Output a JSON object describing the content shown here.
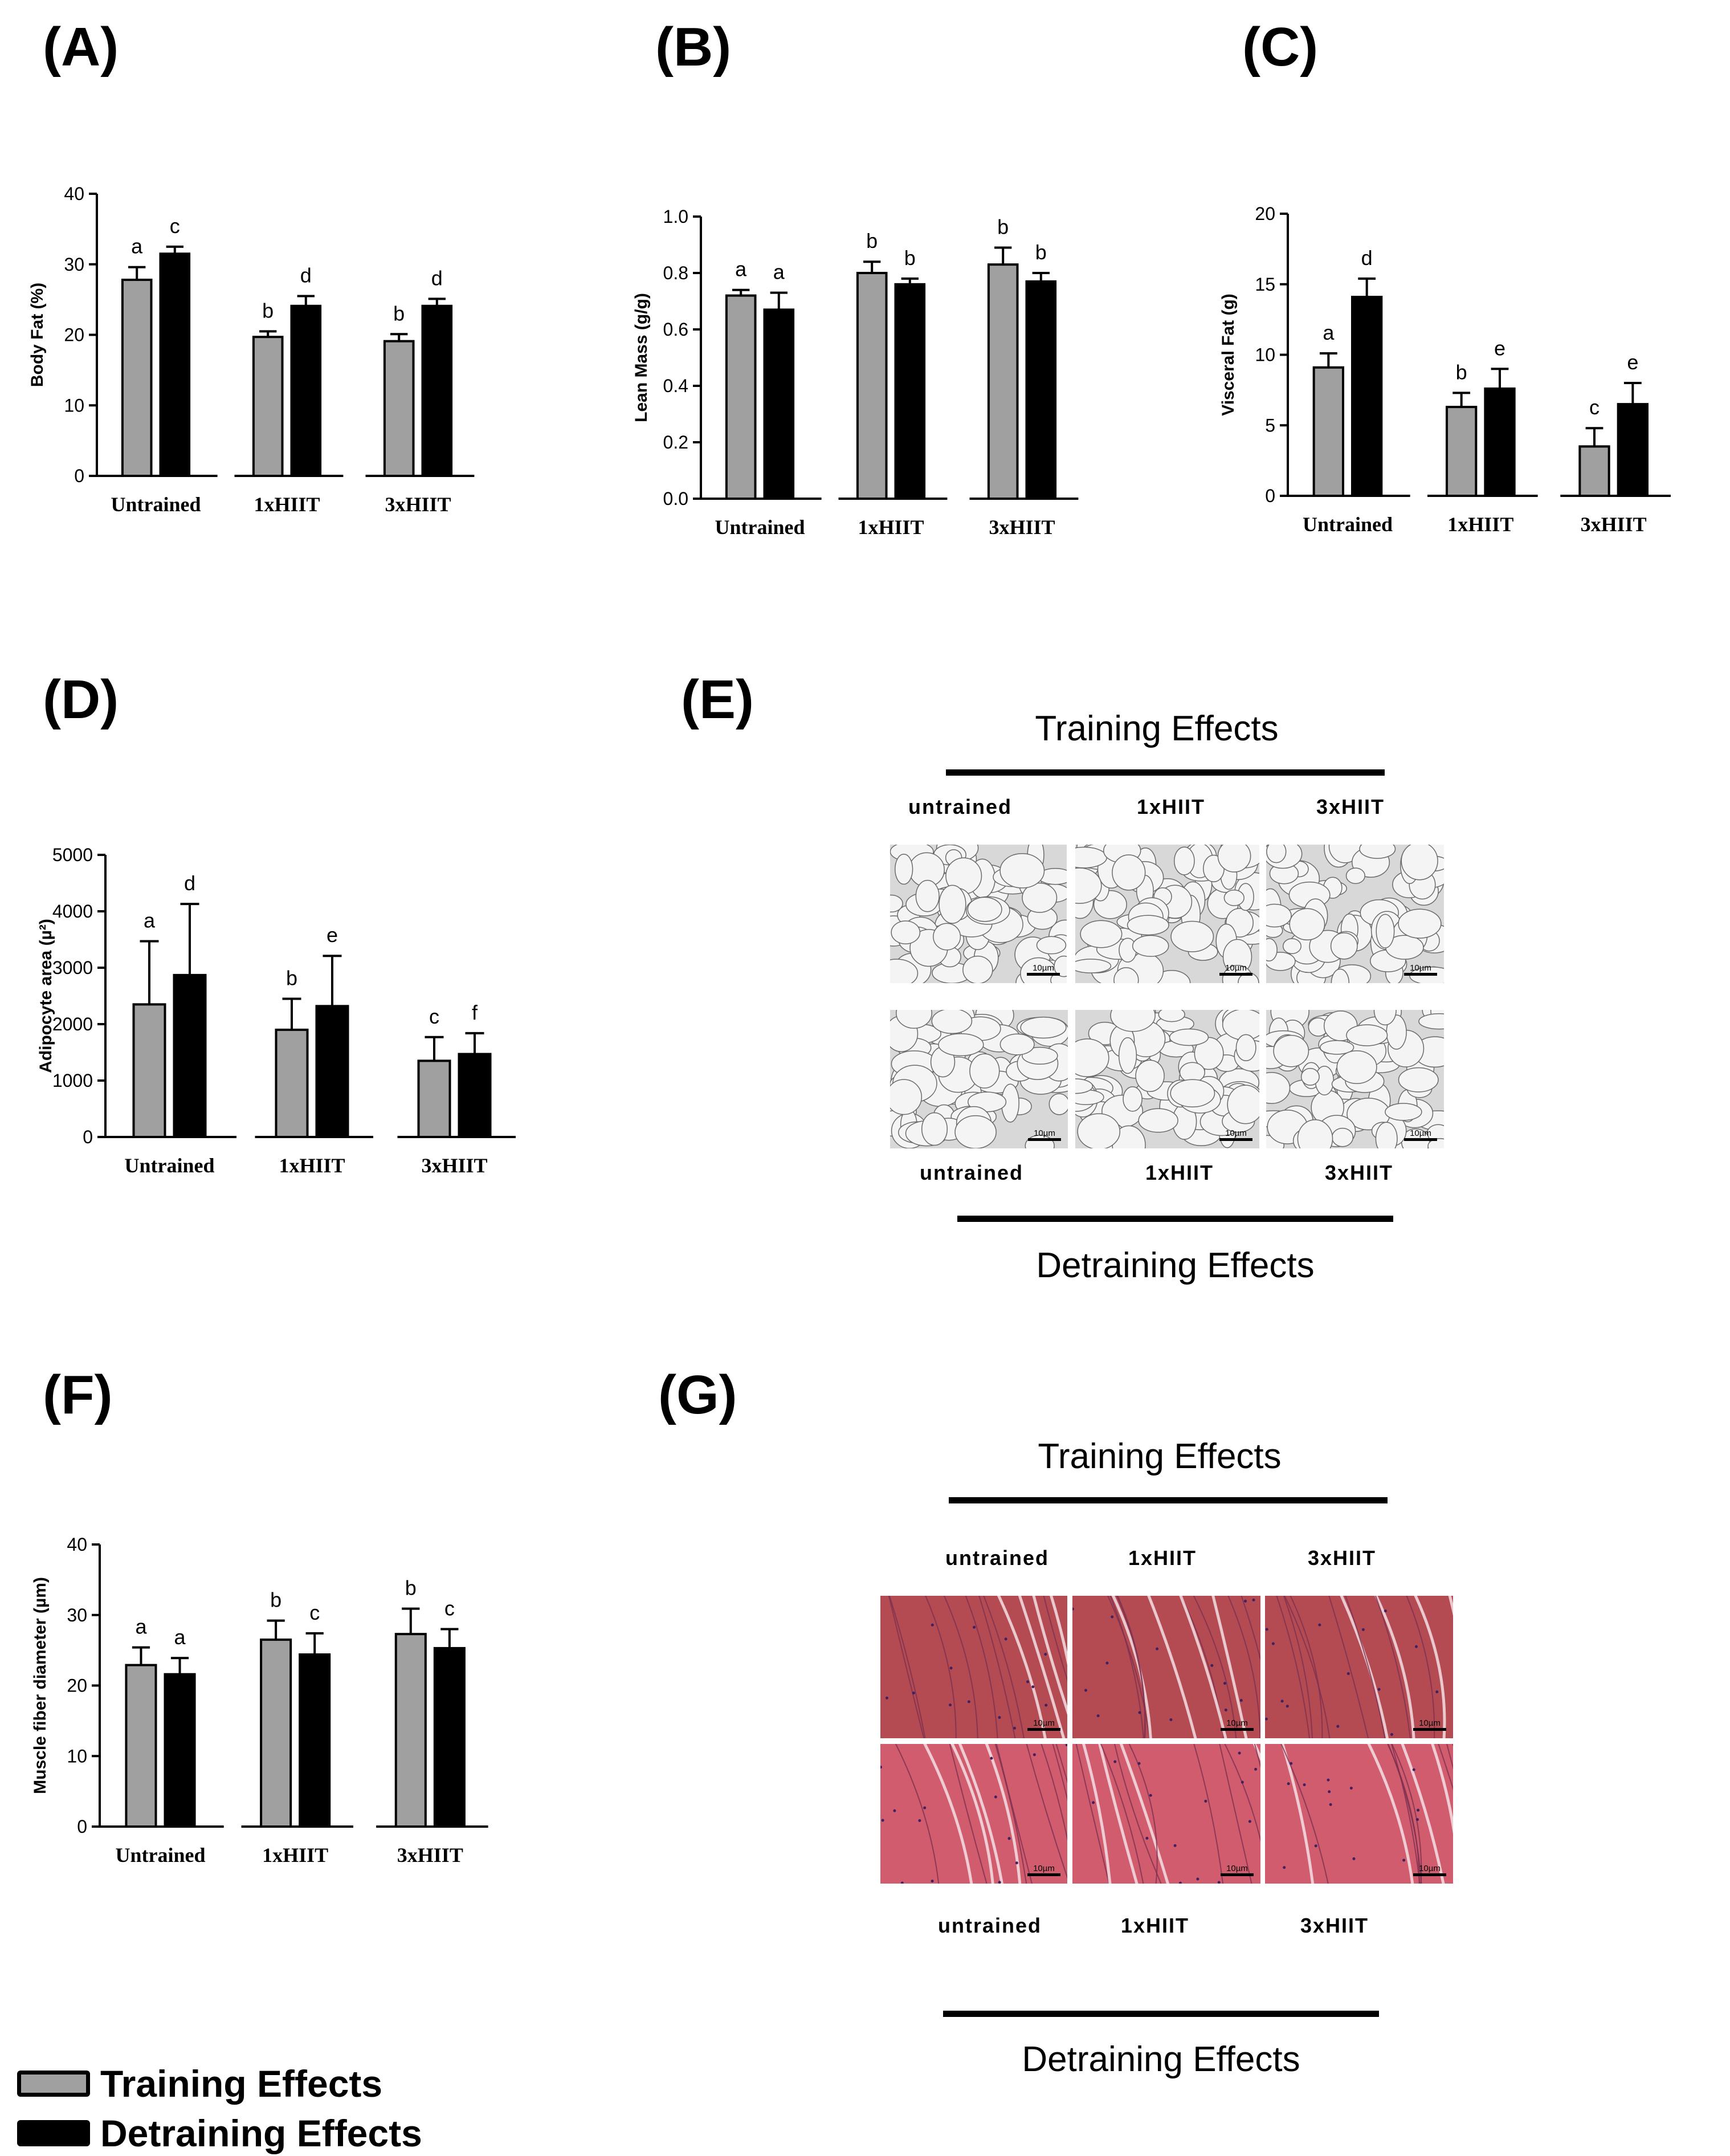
{
  "panel_labels": {
    "A": "(A)",
    "B": "(B)",
    "C": "(C)",
    "D": "(D)",
    "E": "(E)",
    "F": "(F)",
    "G": "(G)"
  },
  "colors": {
    "training": "#a0a0a0",
    "detraining": "#000000",
    "muscle_dark": "#b44a52",
    "muscle_light": "#d05c6e",
    "fat_bg": "#eeeeee"
  },
  "chart_data": [
    {
      "id": "A",
      "type": "bar",
      "ylabel": "Body Fat (%)",
      "ylim": [
        0,
        40
      ],
      "yticks": [
        0,
        10,
        20,
        30,
        40
      ],
      "categories": [
        "Untrained",
        "1xHIIT",
        "3xHIIT"
      ],
      "series": [
        {
          "name": "Training Effects",
          "values": [
            27.8,
            19.7,
            19.1
          ],
          "errors": [
            1.8,
            0.8,
            1.0
          ],
          "letters": [
            "a",
            "b",
            "b"
          ]
        },
        {
          "name": "Detraining Effects",
          "values": [
            31.5,
            24.1,
            24.1
          ],
          "errors": [
            1.0,
            1.4,
            1.0
          ],
          "letters": [
            "c",
            "d",
            "d"
          ]
        }
      ]
    },
    {
      "id": "B",
      "type": "bar",
      "ylabel": "Lean Mass (g/g)",
      "ylim": [
        0,
        1.0
      ],
      "yticks": [
        "0.0",
        "0.2",
        "0.4",
        "0.6",
        "0.8",
        "1.0"
      ],
      "categories": [
        "Untrained",
        "1xHIIT",
        "3xHIIT"
      ],
      "series": [
        {
          "name": "Training Effects",
          "values": [
            0.72,
            0.8,
            0.83
          ],
          "errors": [
            0.02,
            0.04,
            0.06
          ],
          "letters": [
            "a",
            "b",
            "b"
          ]
        },
        {
          "name": "Detraining Effects",
          "values": [
            0.67,
            0.76,
            0.77
          ],
          "errors": [
            0.06,
            0.02,
            0.03
          ],
          "letters": [
            "a",
            "b",
            "b"
          ]
        }
      ]
    },
    {
      "id": "C",
      "type": "bar",
      "ylabel": "Visceral Fat (g)",
      "ylim": [
        0,
        20
      ],
      "yticks": [
        0,
        5,
        10,
        15,
        20
      ],
      "categories": [
        "Untrained",
        "1xHIIT",
        "3xHIIT"
      ],
      "series": [
        {
          "name": "Training Effects",
          "values": [
            9.1,
            6.3,
            3.5
          ],
          "errors": [
            1.0,
            1.0,
            1.3
          ],
          "letters": [
            "a",
            "b",
            "c"
          ]
        },
        {
          "name": "Detraining Effects",
          "values": [
            14.1,
            7.6,
            6.5
          ],
          "errors": [
            1.3,
            1.4,
            1.5
          ],
          "letters": [
            "d",
            "e",
            "e"
          ]
        }
      ]
    },
    {
      "id": "D",
      "type": "bar",
      "ylabel": "Adipocyte area (µ²)",
      "ylim": [
        0,
        5000
      ],
      "yticks": [
        0,
        1000,
        2000,
        3000,
        4000,
        5000
      ],
      "categories": [
        "Untrained",
        "1xHIIT",
        "3xHIIT"
      ],
      "series": [
        {
          "name": "Training Effects",
          "values": [
            2350,
            1900,
            1350
          ],
          "errors": [
            1120,
            550,
            420
          ],
          "letters": [
            "a",
            "b",
            "c"
          ]
        },
        {
          "name": "Detraining Effects",
          "values": [
            2870,
            2320,
            1470
          ],
          "errors": [
            1260,
            890,
            370
          ],
          "letters": [
            "d",
            "e",
            "f"
          ]
        }
      ]
    },
    {
      "id": "F",
      "type": "bar",
      "ylabel": "Muscle fiber diameter (µm)",
      "ylim": [
        0,
        40
      ],
      "yticks": [
        0,
        10,
        20,
        30,
        40
      ],
      "categories": [
        "Untrained",
        "1xHIIT",
        "3xHIIT"
      ],
      "series": [
        {
          "name": "Training Effects",
          "values": [
            22.9,
            26.5,
            27.3
          ],
          "errors": [
            2.5,
            2.7,
            3.6
          ],
          "letters": [
            "a",
            "b",
            "b"
          ]
        },
        {
          "name": "Detraining Effects",
          "values": [
            21.6,
            24.4,
            25.3
          ],
          "errors": [
            2.3,
            3.0,
            2.7
          ],
          "letters": [
            "a",
            "c",
            "c"
          ]
        }
      ]
    }
  ],
  "histology": {
    "E": {
      "top_title": "Training Effects",
      "bottom_title": "Detraining Effects",
      "top_columns": [
        "untrained",
        "1xHIIT",
        "3xHIIT"
      ],
      "bottom_columns": [
        "untrained",
        "1xHIIT",
        "3xHIIT"
      ],
      "scale_label": "10µm"
    },
    "G": {
      "top_title": "Training Effects",
      "bottom_title": "Detraining Effects",
      "top_columns": [
        "untrained",
        "1xHIIT",
        "3xHIIT"
      ],
      "bottom_columns": [
        "untrained",
        "1xHIIT",
        "3xHIIT"
      ],
      "scale_label": "10µm"
    }
  },
  "legend": {
    "training": "Training Effects",
    "detraining": "Detraining Effects"
  }
}
